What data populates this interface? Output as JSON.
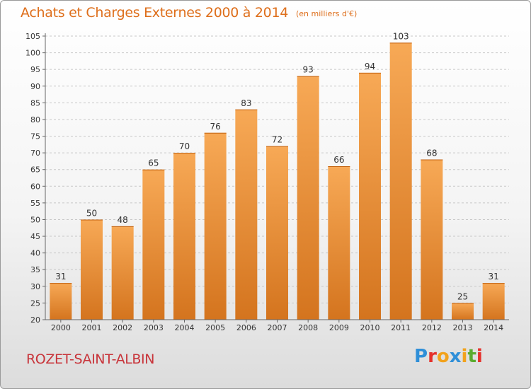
{
  "title": "Achats et Charges Externes 2000 à 2014",
  "subtitle": "(en milliers d'€)",
  "footer_name": "ROZET-SAINT-ALBIN",
  "brand": {
    "letters": [
      "P",
      "r",
      "o",
      "x",
      "i",
      "t",
      "i"
    ],
    "colors": [
      "#2f8fd8",
      "#e5312b",
      "#f2a21c",
      "#2f8fd8",
      "#f2a21c",
      "#5aab2e",
      "#e5312b"
    ]
  },
  "colors": {
    "title": "#de6f1c",
    "bar_light": "#f7a956",
    "bar_dark": "#d4741e",
    "axis_text": "#333333",
    "grid": "#c8c8c8"
  },
  "chart_data": {
    "type": "bar",
    "categories": [
      "2000",
      "2001",
      "2002",
      "2003",
      "2004",
      "2005",
      "2006",
      "2007",
      "2008",
      "2009",
      "2010",
      "2011",
      "2012",
      "2013",
      "2014"
    ],
    "values": [
      31,
      50,
      48,
      65,
      70,
      76,
      83,
      72,
      93,
      66,
      94,
      103,
      68,
      25,
      31
    ],
    "ylim": [
      20,
      105
    ],
    "yticks": [
      20,
      25,
      30,
      35,
      40,
      45,
      50,
      55,
      60,
      65,
      70,
      75,
      80,
      85,
      90,
      95,
      100,
      105
    ],
    "grid": "horizontal-dashed",
    "data_labels": true
  }
}
